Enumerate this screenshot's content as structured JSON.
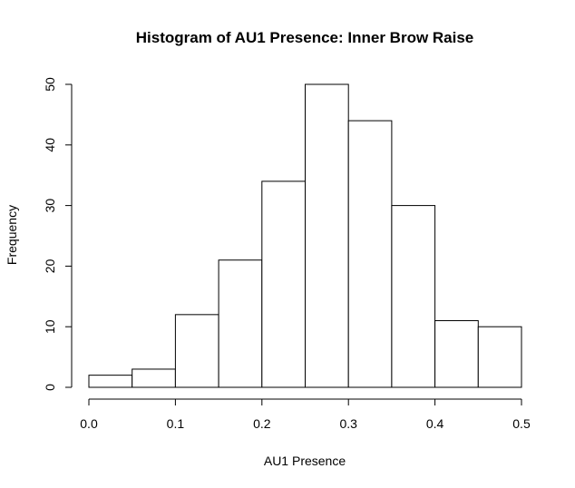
{
  "chart_data": {
    "type": "bar",
    "title": "Histogram of AU1 Presence: Inner Brow Raise",
    "xlabel": "AU1 Presence",
    "ylabel": "Frequency",
    "bins": [
      {
        "x0": 0.0,
        "x1": 0.05,
        "count": 2
      },
      {
        "x0": 0.05,
        "x1": 0.1,
        "count": 3
      },
      {
        "x0": 0.1,
        "x1": 0.15,
        "count": 12
      },
      {
        "x0": 0.15,
        "x1": 0.2,
        "count": 21
      },
      {
        "x0": 0.2,
        "x1": 0.25,
        "count": 34
      },
      {
        "x0": 0.25,
        "x1": 0.3,
        "count": 50
      },
      {
        "x0": 0.3,
        "x1": 0.35,
        "count": 44
      },
      {
        "x0": 0.35,
        "x1": 0.4,
        "count": 30
      },
      {
        "x0": 0.4,
        "x1": 0.45,
        "count": 11
      },
      {
        "x0": 0.45,
        "x1": 0.5,
        "count": 10
      }
    ],
    "xlim": [
      0,
      0.5
    ],
    "ylim": [
      0,
      50
    ],
    "x_ticks": [
      "0.0",
      "0.1",
      "0.2",
      "0.3",
      "0.4",
      "0.5"
    ],
    "y_ticks": [
      "0",
      "10",
      "20",
      "30",
      "40",
      "50"
    ],
    "grid": false,
    "legend": "none",
    "bar_fill": "#ffffff",
    "bar_stroke": "#000000"
  }
}
